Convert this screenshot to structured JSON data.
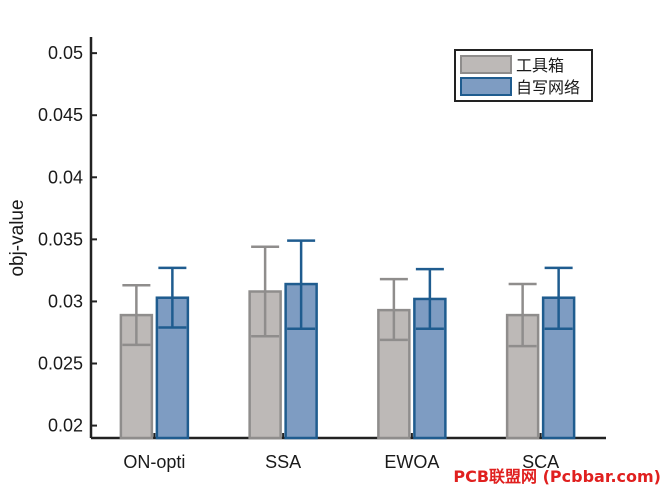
{
  "chart_data": {
    "type": "bar",
    "categories": [
      "ON-opti",
      "SSA",
      "EWOA",
      "SCA"
    ],
    "ylabel": "obj-value",
    "xlabel": "",
    "ylim": [
      0.019,
      0.0513
    ],
    "yticks": [
      "0.02",
      "0.025",
      "0.03",
      "0.035",
      "0.04",
      "0.045",
      "0.05"
    ],
    "legend_position": "top-right",
    "grid": false,
    "series": [
      {
        "name": "工具箱",
        "color": "#bdb9b7",
        "edge_color": "#8f8d8c",
        "values": [
          0.0289,
          0.0308,
          0.0293,
          0.0289
        ],
        "error_low": [
          0.0265,
          0.0272,
          0.0269,
          0.0264
        ],
        "error_high": [
          0.0313,
          0.0344,
          0.0318,
          0.0314
        ]
      },
      {
        "name": "自写网络",
        "color": "#7e9cc2",
        "edge_color": "#1f5c8f",
        "values": [
          0.0303,
          0.0314,
          0.0302,
          0.0303
        ],
        "error_low": [
          0.0279,
          0.0278,
          0.0278,
          0.0278
        ],
        "error_high": [
          0.0327,
          0.0349,
          0.0326,
          0.0327
        ]
      }
    ]
  },
  "watermark": "PCB联盟网 (Pcbbar.com)"
}
